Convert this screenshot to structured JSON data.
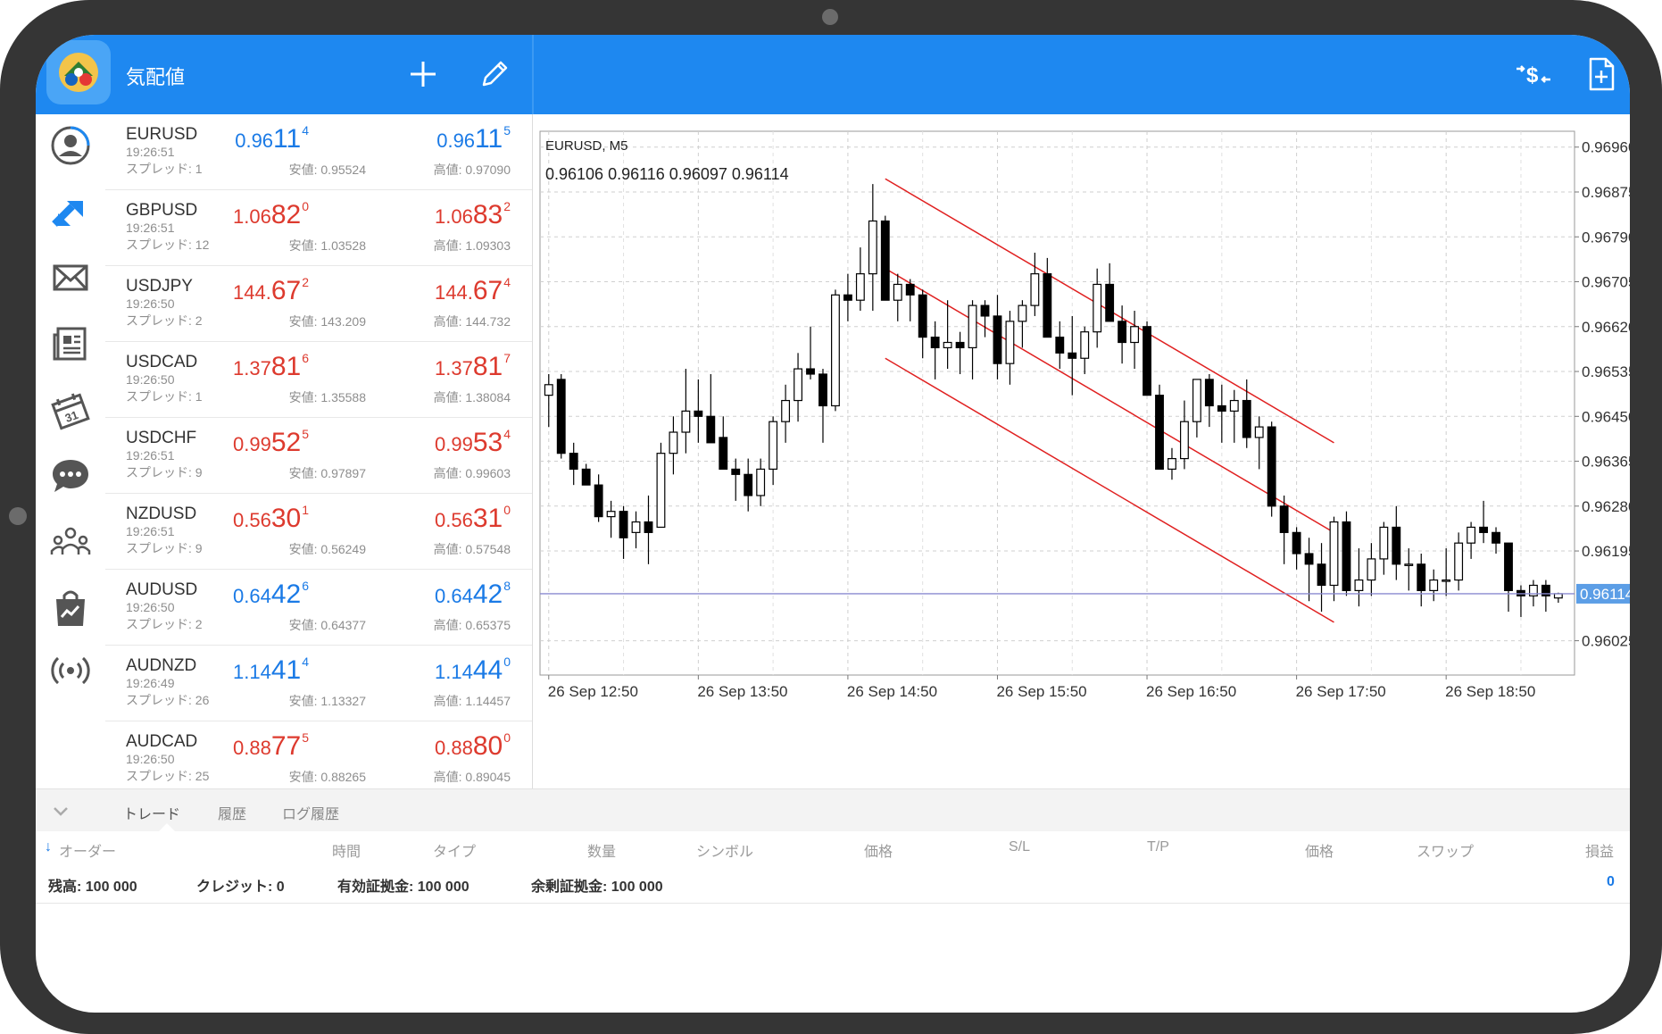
{
  "header": {
    "title": "気配値",
    "icons": [
      "metatrader-logo-icon",
      "add-icon",
      "edit-icon",
      "trade-dollar-icon",
      "new-document-icon"
    ]
  },
  "nav": {
    "icons": [
      "account-icon",
      "trade-icon",
      "mail-icon",
      "news-icon",
      "calendar-icon",
      "chat-icon",
      "community-icon",
      "market-icon",
      "signals-icon"
    ]
  },
  "quotes": [
    {
      "symbol": "EURUSD",
      "time": "19:26:51",
      "spread": "スプレッド: 1",
      "bid": {
        "a": "0.96",
        "b": "11",
        "c": "4"
      },
      "ask": {
        "a": "0.96",
        "b": "11",
        "c": "5"
      },
      "low": "安値: 0.95524",
      "high": "高値: 0.97090",
      "color": "blue"
    },
    {
      "symbol": "GBPUSD",
      "time": "19:26:51",
      "spread": "スプレッド: 12",
      "bid": {
        "a": "1.06",
        "b": "82",
        "c": "0"
      },
      "ask": {
        "a": "1.06",
        "b": "83",
        "c": "2"
      },
      "low": "安値: 1.03528",
      "high": "高値: 1.09303",
      "color": "red"
    },
    {
      "symbol": "USDJPY",
      "time": "19:26:50",
      "spread": "スプレッド: 2",
      "bid": {
        "a": "144.",
        "b": "67",
        "c": "2"
      },
      "ask": {
        "a": "144.",
        "b": "67",
        "c": "4"
      },
      "low": "安値: 143.209",
      "high": "高値: 144.732",
      "color": "red"
    },
    {
      "symbol": "USDCAD",
      "time": "19:26:50",
      "spread": "スプレッド: 1",
      "bid": {
        "a": "1.37",
        "b": "81",
        "c": "6"
      },
      "ask": {
        "a": "1.37",
        "b": "81",
        "c": "7"
      },
      "low": "安値: 1.35588",
      "high": "高値: 1.38084",
      "color": "red"
    },
    {
      "symbol": "USDCHF",
      "time": "19:26:51",
      "spread": "スプレッド: 9",
      "bid": {
        "a": "0.99",
        "b": "52",
        "c": "5"
      },
      "ask": {
        "a": "0.99",
        "b": "53",
        "c": "4"
      },
      "low": "安値: 0.97897",
      "high": "高値: 0.99603",
      "color": "red"
    },
    {
      "symbol": "NZDUSD",
      "time": "19:26:51",
      "spread": "スプレッド: 9",
      "bid": {
        "a": "0.56",
        "b": "30",
        "c": "1"
      },
      "ask": {
        "a": "0.56",
        "b": "31",
        "c": "0"
      },
      "low": "安値: 0.56249",
      "high": "高値: 0.57548",
      "color": "red"
    },
    {
      "symbol": "AUDUSD",
      "time": "19:26:50",
      "spread": "スプレッド: 2",
      "bid": {
        "a": "0.64",
        "b": "42",
        "c": "6"
      },
      "ask": {
        "a": "0.64",
        "b": "42",
        "c": "8"
      },
      "low": "安値: 0.64377",
      "high": "高値: 0.65375",
      "color": "blue"
    },
    {
      "symbol": "AUDNZD",
      "time": "19:26:49",
      "spread": "スプレッド: 26",
      "bid": {
        "a": "1.14",
        "b": "41",
        "c": "4"
      },
      "ask": {
        "a": "1.14",
        "b": "44",
        "c": "0"
      },
      "low": "安値: 1.13327",
      "high": "高値: 1.14457",
      "color": "blue"
    },
    {
      "symbol": "AUDCAD",
      "time": "19:26:50",
      "spread": "スプレッド: 25",
      "bid": {
        "a": "0.88",
        "b": "77",
        "c": "5"
      },
      "ask": {
        "a": "0.88",
        "b": "80",
        "c": "0"
      },
      "low": "安値: 0.88265",
      "high": "高値: 0.89045",
      "color": "red"
    }
  ],
  "chart": {
    "symbol_label": "EURUSD, M5",
    "ohlc_label": "0.96106 0.96116 0.96097 0.96114",
    "price_ticks": [
      "0.96960",
      "0.96875",
      "0.96790",
      "0.96705",
      "0.96620",
      "0.96535",
      "0.96450",
      "0.96365",
      "0.96280",
      "0.96195",
      "0.96114",
      "0.96025"
    ],
    "current_price": "0.96114",
    "time_ticks": [
      "26 Sep 12:50",
      "26 Sep 13:50",
      "26 Sep 14:50",
      "26 Sep 15:50",
      "26 Sep 16:50",
      "26 Sep 17:50",
      "26 Sep 18:50"
    ]
  },
  "chart_data": {
    "type": "candlestick",
    "symbol": "EURUSD",
    "timeframe": "M5",
    "ylim": [
      0.9596,
      0.9699
    ],
    "current_price": 0.96114,
    "x_ticks": [
      "26 Sep 12:50",
      "26 Sep 13:50",
      "26 Sep 14:50",
      "26 Sep 15:50",
      "26 Sep 16:50",
      "26 Sep 17:50",
      "26 Sep 18:50"
    ],
    "candles": [
      [
        0.9649,
        0.9653,
        0.9643,
        0.9651
      ],
      [
        0.9652,
        0.9653,
        0.9637,
        0.9638
      ],
      [
        0.9638,
        0.964,
        0.9632,
        0.9635
      ],
      [
        0.9635,
        0.9636,
        0.9632,
        0.9632
      ],
      [
        0.9632,
        0.9634,
        0.9625,
        0.9626
      ],
      [
        0.9626,
        0.9629,
        0.9622,
        0.9627
      ],
      [
        0.9627,
        0.9628,
        0.9618,
        0.9622
      ],
      [
        0.9623,
        0.9627,
        0.962,
        0.9625
      ],
      [
        0.9625,
        0.963,
        0.9617,
        0.9623
      ],
      [
        0.9624,
        0.964,
        0.9624,
        0.9638
      ],
      [
        0.9638,
        0.9645,
        0.9634,
        0.9642
      ],
      [
        0.9642,
        0.9654,
        0.9638,
        0.9646
      ],
      [
        0.9646,
        0.9652,
        0.964,
        0.9645
      ],
      [
        0.9645,
        0.9653,
        0.964,
        0.964
      ],
      [
        0.9641,
        0.9645,
        0.9635,
        0.9635
      ],
      [
        0.9635,
        0.9637,
        0.9629,
        0.9634
      ],
      [
        0.9634,
        0.9637,
        0.9627,
        0.963
      ],
      [
        0.963,
        0.9637,
        0.9628,
        0.9635
      ],
      [
        0.9635,
        0.9645,
        0.9632,
        0.9644
      ],
      [
        0.9644,
        0.9651,
        0.964,
        0.9648
      ],
      [
        0.9648,
        0.9657,
        0.9644,
        0.9654
      ],
      [
        0.9654,
        0.9662,
        0.9652,
        0.9653
      ],
      [
        0.9653,
        0.9654,
        0.964,
        0.9647
      ],
      [
        0.9647,
        0.9669,
        0.9646,
        0.9668
      ],
      [
        0.9668,
        0.9672,
        0.9663,
        0.9667
      ],
      [
        0.9667,
        0.9677,
        0.9665,
        0.9672
      ],
      [
        0.9672,
        0.9689,
        0.9665,
        0.9682
      ],
      [
        0.9682,
        0.9683,
        0.9667,
        0.9667
      ],
      [
        0.9667,
        0.9672,
        0.9663,
        0.967
      ],
      [
        0.967,
        0.9671,
        0.9663,
        0.9668
      ],
      [
        0.9668,
        0.9669,
        0.9656,
        0.966
      ],
      [
        0.966,
        0.9663,
        0.9652,
        0.9658
      ],
      [
        0.9658,
        0.9667,
        0.9654,
        0.9659
      ],
      [
        0.9659,
        0.9661,
        0.9653,
        0.9658
      ],
      [
        0.9658,
        0.9667,
        0.9652,
        0.9666
      ],
      [
        0.9666,
        0.9667,
        0.966,
        0.9664
      ],
      [
        0.9664,
        0.9668,
        0.9652,
        0.9655
      ],
      [
        0.9655,
        0.9665,
        0.9651,
        0.9663
      ],
      [
        0.9663,
        0.9667,
        0.9658,
        0.9666
      ],
      [
        0.9666,
        0.9676,
        0.9664,
        0.9672
      ],
      [
        0.9672,
        0.9675,
        0.966,
        0.966
      ],
      [
        0.966,
        0.9663,
        0.9654,
        0.9657
      ],
      [
        0.9657,
        0.9664,
        0.9649,
        0.9656
      ],
      [
        0.9656,
        0.9662,
        0.9653,
        0.9661
      ],
      [
        0.9661,
        0.9673,
        0.9658,
        0.967
      ],
      [
        0.967,
        0.9674,
        0.9663,
        0.9663
      ],
      [
        0.9663,
        0.9666,
        0.9655,
        0.9659
      ],
      [
        0.9659,
        0.9665,
        0.9654,
        0.9662
      ],
      [
        0.9662,
        0.9663,
        0.9649,
        0.9649
      ],
      [
        0.9649,
        0.9651,
        0.9635,
        0.9635
      ],
      [
        0.9635,
        0.9639,
        0.9633,
        0.9637
      ],
      [
        0.9637,
        0.9648,
        0.9635,
        0.9644
      ],
      [
        0.9644,
        0.9652,
        0.9641,
        0.9652
      ],
      [
        0.9652,
        0.9653,
        0.9643,
        0.9647
      ],
      [
        0.9647,
        0.9651,
        0.964,
        0.9646
      ],
      [
        0.9646,
        0.965,
        0.964,
        0.9648
      ],
      [
        0.9648,
        0.9652,
        0.9639,
        0.9641
      ],
      [
        0.9641,
        0.9645,
        0.9635,
        0.9643
      ],
      [
        0.9643,
        0.9644,
        0.9626,
        0.9628
      ],
      [
        0.9628,
        0.963,
        0.9617,
        0.9623
      ],
      [
        0.9623,
        0.9624,
        0.9616,
        0.9619
      ],
      [
        0.9619,
        0.9622,
        0.961,
        0.9617
      ],
      [
        0.9617,
        0.9621,
        0.9608,
        0.9613
      ],
      [
        0.9613,
        0.9626,
        0.961,
        0.9625
      ],
      [
        0.9625,
        0.9627,
        0.9611,
        0.9612
      ],
      [
        0.9612,
        0.962,
        0.9609,
        0.9614
      ],
      [
        0.9614,
        0.9621,
        0.9611,
        0.9618
      ],
      [
        0.9618,
        0.9625,
        0.9615,
        0.9624
      ],
      [
        0.9624,
        0.9628,
        0.9614,
        0.9617
      ],
      [
        0.9617,
        0.962,
        0.9612,
        0.9617
      ],
      [
        0.9617,
        0.9619,
        0.9609,
        0.9612
      ],
      [
        0.9612,
        0.9616,
        0.961,
        0.9614
      ],
      [
        0.9614,
        0.962,
        0.9611,
        0.9614
      ],
      [
        0.9614,
        0.9623,
        0.9612,
        0.9621
      ],
      [
        0.9621,
        0.9625,
        0.9618,
        0.9624
      ],
      [
        0.9624,
        0.9629,
        0.9621,
        0.9623
      ],
      [
        0.9623,
        0.9624,
        0.9619,
        0.9621
      ],
      [
        0.9621,
        0.9621,
        0.9608,
        0.9612
      ],
      [
        0.9612,
        0.9613,
        0.9607,
        0.9611
      ],
      [
        0.9611,
        0.9614,
        0.9609,
        0.9613
      ],
      [
        0.9613,
        0.9614,
        0.9608,
        0.9611
      ],
      [
        0.96106,
        0.96116,
        0.96097,
        0.96114
      ]
    ]
  },
  "bottom": {
    "tabs": [
      "トレード",
      "履歴",
      "ログ履歴"
    ],
    "columns": [
      "オーダー",
      "時間",
      "タイプ",
      "数量",
      "シンボル",
      "価格",
      "S/L",
      "T/P",
      "価格",
      "スワップ",
      "損益"
    ],
    "summary": {
      "balance": "残高:  100 000",
      "credit": "クレジット:  0",
      "equity": "有効証拠金:  100 000",
      "free_margin": "余剰証拠金:  100 000",
      "profit": "0"
    }
  }
}
